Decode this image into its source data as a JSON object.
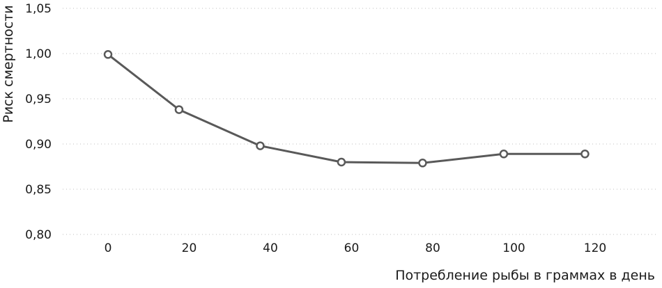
{
  "chart_data": {
    "type": "line",
    "title": "",
    "xlabel": "Потребление рыбы в граммах в день",
    "ylabel": "Риск смертности",
    "x": [
      0,
      17.5,
      37.5,
      57.5,
      77.5,
      97.5,
      117.5
    ],
    "series": [
      {
        "values": [
          0.999,
          0.938,
          0.898,
          0.88,
          0.879,
          0.889,
          0.889
        ]
      }
    ],
    "xticks": [
      0,
      20,
      40,
      60,
      80,
      100,
      120
    ],
    "xtick_labels": [
      "0",
      "20",
      "40",
      "60",
      "80",
      "100",
      "120"
    ],
    "yticks": [
      0.8,
      0.85,
      0.9,
      0.95,
      1.0,
      1.05
    ],
    "ytick_labels": [
      "0,80",
      "0,85",
      "0,90",
      "0,95",
      "1,00",
      "1,05"
    ],
    "xlim": [
      0,
      120
    ],
    "ylim": [
      0.8,
      1.05
    ],
    "grid": "horizontal-dotted",
    "line_color": "#595959",
    "marker": "open-circle"
  }
}
